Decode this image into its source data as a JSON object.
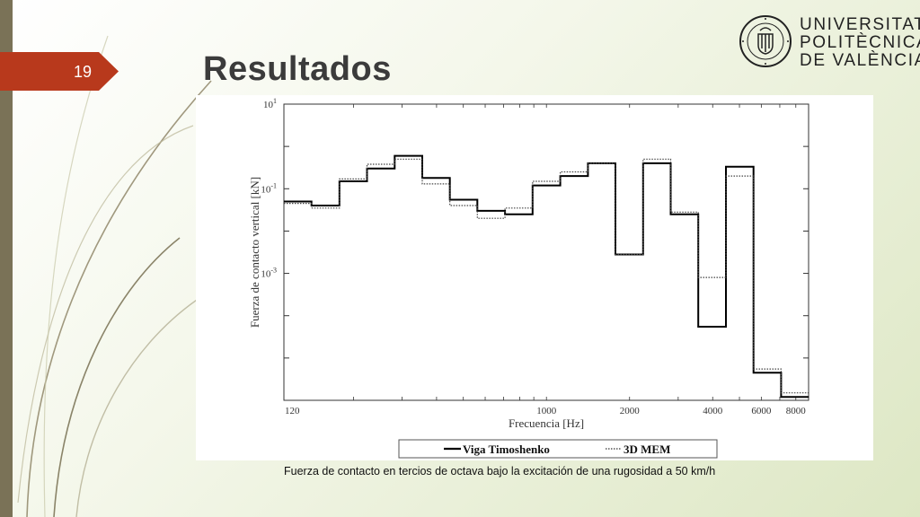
{
  "slide": {
    "number": "19",
    "title": "Resultados",
    "caption": "Fuerza de contacto en tercios de octava bajo la excitación de una rugosidad a 50 km/h"
  },
  "logo": {
    "line1": "UNIVERSITAT",
    "line2": "POLITÈCNICA",
    "line3": "DE VALÈNCIA",
    "seal_text": "UNIVERSITAT POLITÈCNICA DE VALÈNCIA"
  },
  "colors": {
    "accent": "#b8391c",
    "sidebar": "#7a7257",
    "deco_lines": "#7d7355"
  },
  "chart_data": {
    "type": "line",
    "step": true,
    "xscale": "log",
    "yscale": "log",
    "xlabel": "Frecuencia [Hz]",
    "ylabel": "Fuerza de contacto vertical [kN]",
    "xlim": [
      112,
      8900
    ],
    "ylim": [
      1e-06,
      10
    ],
    "xticks": [
      {
        "value": 120,
        "label": "120"
      },
      {
        "value": 1000,
        "label": "1000"
      },
      {
        "value": 2000,
        "label": "2000"
      },
      {
        "value": 4000,
        "label": "4000"
      },
      {
        "value": 6000,
        "label": "6000"
      },
      {
        "value": 8000,
        "label": "8000"
      }
    ],
    "yticks": [
      {
        "value": 10,
        "base": "10",
        "exp": "1"
      },
      {
        "value": 0.1,
        "base": "10",
        "exp": "-1"
      },
      {
        "value": 0.001,
        "base": "10",
        "exp": "-3"
      }
    ],
    "bin_edges": [
      112,
      141,
      178,
      224,
      282,
      355,
      447,
      562,
      708,
      891,
      1122,
      1413,
      1778,
      2239,
      2818,
      3548,
      4467,
      5623,
      7079,
      8913
    ],
    "series": [
      {
        "name": "Viga Timoshenko",
        "style": "solid",
        "values": [
          0.05,
          0.04,
          0.15,
          0.3,
          0.6,
          0.18,
          0.055,
          0.03,
          0.025,
          0.12,
          0.2,
          0.4,
          0.0028,
          0.4,
          0.025,
          5.5e-05,
          0.33,
          4.5e-06,
          1.2e-06
        ]
      },
      {
        "name": "3D MEM",
        "style": "dotted",
        "values": [
          0.045,
          0.035,
          0.17,
          0.38,
          0.5,
          0.13,
          0.04,
          0.02,
          0.035,
          0.15,
          0.25,
          0.4,
          0.0028,
          0.5,
          0.028,
          0.0008,
          0.2,
          5.5e-06,
          1.5e-06
        ]
      }
    ],
    "legend": "bottom"
  }
}
